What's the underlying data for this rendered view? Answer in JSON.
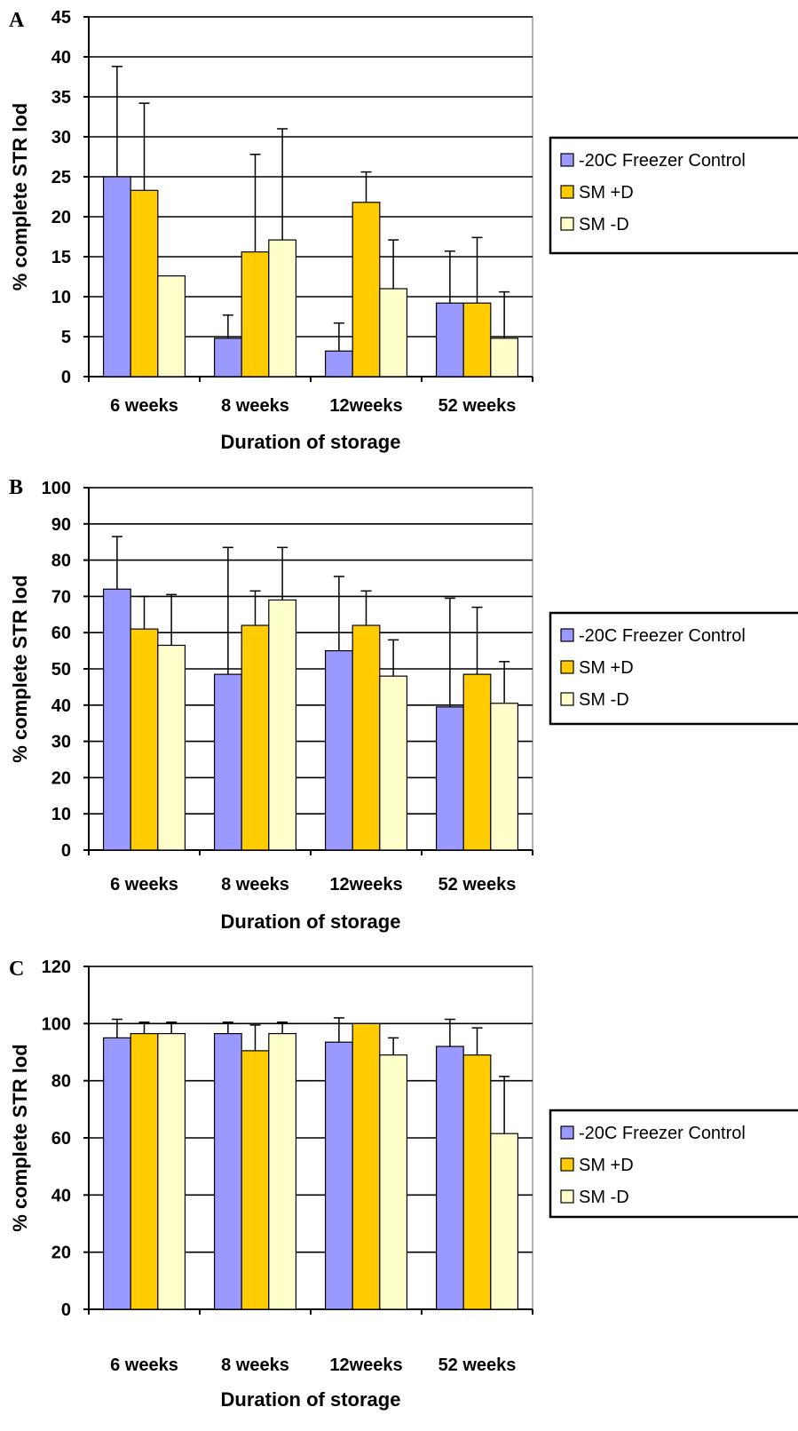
{
  "chart_data": [
    {
      "type": "bar",
      "panel_label": "A",
      "categories": [
        "6 weeks",
        "8 weeks",
        "12weeks",
        "52 weeks"
      ],
      "series": [
        {
          "name": "-20C Freezer Control",
          "values": [
            25,
            4.8,
            3.2,
            9.2
          ],
          "errors": [
            13.8,
            2.9,
            3.5,
            6.5
          ]
        },
        {
          "name": "SM +D",
          "values": [
            23.3,
            15.6,
            21.8,
            9.2
          ],
          "errors": [
            10.9,
            12.2,
            3.8,
            8.2
          ]
        },
        {
          "name": "SM -D",
          "values": [
            12.6,
            17.1,
            11,
            4.8
          ],
          "errors": [
            0,
            13.9,
            6.1,
            5.8
          ]
        }
      ],
      "xlabel": "Duration of storage",
      "ylabel": "% complete STR lod",
      "ylim": [
        0,
        45
      ],
      "yticks": [
        0,
        5,
        10,
        15,
        20,
        25,
        30,
        35,
        40,
        45
      ],
      "grid": true,
      "legend": "right"
    },
    {
      "type": "bar",
      "panel_label": "B",
      "categories": [
        "6 weeks",
        "8 weeks",
        "12weeks",
        "52 weeks"
      ],
      "series": [
        {
          "name": "-20C Freezer Control",
          "values": [
            72,
            48.5,
            55,
            39.5
          ],
          "errors": [
            14.5,
            35,
            20.5,
            30
          ]
        },
        {
          "name": "SM +D",
          "values": [
            61,
            62,
            62,
            48.5
          ],
          "errors": [
            9,
            9.5,
            9.5,
            18.5
          ]
        },
        {
          "name": "SM -D",
          "values": [
            56.5,
            69,
            48,
            40.5
          ],
          "errors": [
            14,
            14.5,
            10,
            11.5
          ]
        }
      ],
      "xlabel": "Duration of storage",
      "ylabel": "% complete STR lod",
      "ylim": [
        0,
        100
      ],
      "yticks": [
        0,
        10,
        20,
        30,
        40,
        50,
        60,
        70,
        80,
        90,
        100
      ],
      "grid": true,
      "legend": "right"
    },
    {
      "type": "bar",
      "panel_label": "C",
      "categories": [
        "6 weeks",
        "8 weeks",
        "12weeks",
        "52 weeks"
      ],
      "series": [
        {
          "name": "-20C Freezer Control",
          "values": [
            95,
            96.5,
            93.5,
            92
          ],
          "errors": [
            6.5,
            4,
            8.5,
            9.5
          ]
        },
        {
          "name": "SM +D",
          "values": [
            96.5,
            90.5,
            100,
            89
          ],
          "errors": [
            4,
            9,
            0,
            9.5
          ]
        },
        {
          "name": "SM -D",
          "values": [
            96.5,
            96.5,
            89,
            61.5
          ],
          "errors": [
            4,
            4,
            6,
            20
          ]
        }
      ],
      "xlabel": "Duration of storage",
      "ylabel": "% complete STR lod",
      "ylim": [
        0,
        120
      ],
      "yticks": [
        0,
        20,
        40,
        60,
        80,
        100,
        120
      ],
      "grid": true,
      "legend": "right"
    }
  ],
  "colors": {
    "series": [
      "#9999ff",
      "#ffcc00",
      "#ffffcc"
    ],
    "grid": "#000000",
    "plot_background": "#ffffff"
  }
}
